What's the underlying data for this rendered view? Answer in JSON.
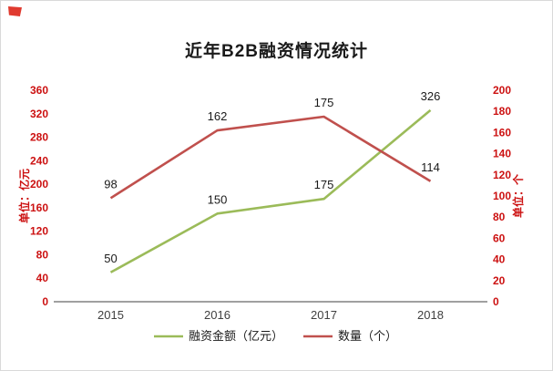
{
  "title": "近年B2B融资情况统计",
  "left_axis": {
    "title": "单位：亿元",
    "ticks": [
      0,
      40,
      80,
      120,
      160,
      200,
      240,
      280,
      320,
      360
    ],
    "min": 0,
    "max": 360,
    "label_color": "#cc1111"
  },
  "right_axis": {
    "title": "单位：个",
    "ticks": [
      0,
      20,
      40,
      60,
      80,
      100,
      120,
      140,
      160,
      180,
      200
    ],
    "min": 0,
    "max": 200,
    "label_color": "#cc1111"
  },
  "chart_data": {
    "type": "line",
    "title": "近年B2B融资情况统计",
    "categories": [
      "2015",
      "2016",
      "2017",
      "2018"
    ],
    "series": [
      {
        "name": "融资金额（亿元）",
        "axis": "left",
        "color": "#9bbb59",
        "values": [
          50,
          150,
          175,
          326
        ]
      },
      {
        "name": "数量（个）",
        "axis": "right",
        "color": "#c0504d",
        "values": [
          98,
          162,
          175,
          114
        ]
      }
    ],
    "left_ylim": [
      0,
      360
    ],
    "right_ylim": [
      0,
      200
    ],
    "grid": false,
    "legend_position": "bottom",
    "data_label_color": "#1a1a1a",
    "axis_line_color": "#808080",
    "category_label_color": "#404040"
  },
  "legend": {
    "items": [
      "融资金额（亿元）",
      "数量（个）"
    ]
  }
}
